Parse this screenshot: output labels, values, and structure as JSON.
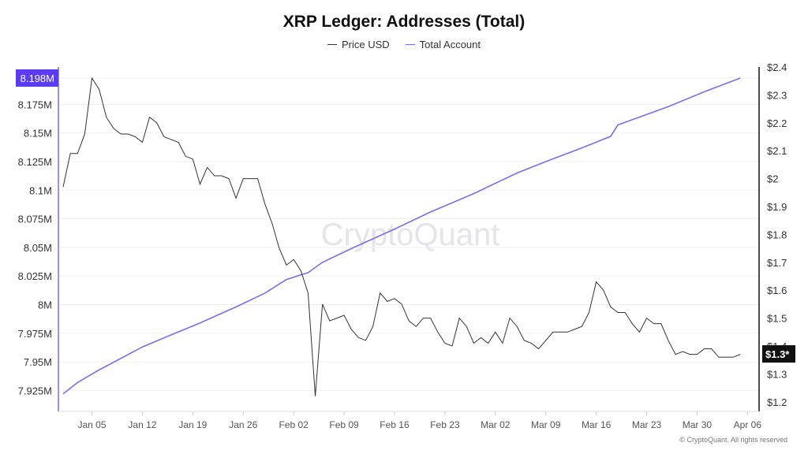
{
  "chart_data": {
    "type": "line",
    "title": "XRP Ledger: Addresses (Total)",
    "watermark": "CryptoQuant",
    "copyright": "© CryptoQuant. All rights reserved",
    "legend_placement": "top-center",
    "grid": true,
    "x_ticks": [
      "Jan 05",
      "Jan 12",
      "Jan 19",
      "Jan 26",
      "Feb 02",
      "Feb 09",
      "Feb 16",
      "Feb 23",
      "Mar 02",
      "Mar 09",
      "Mar 16",
      "Mar 23",
      "Mar 30",
      "Apr 06"
    ],
    "y_left": {
      "ticks": [
        "8.175M",
        "8.15M",
        "8.125M",
        "8.1M",
        "8.075M",
        "8.05M",
        "8.025M",
        "8M",
        "7.975M",
        "7.95M",
        "7.925M"
      ],
      "tick_values": [
        8.175,
        8.15,
        8.125,
        8.1,
        8.075,
        8.05,
        8.025,
        8.0,
        7.975,
        7.95,
        7.925
      ],
      "range": [
        7.915,
        8.208
      ],
      "current_label": "8.198M",
      "current_value": 8.198
    },
    "y_right": {
      "ticks": [
        "$2.4",
        "$2.3",
        "$2.2",
        "$2.1",
        "$2",
        "$1.9",
        "$1.8",
        "$1.7",
        "$1.6",
        "$1.5",
        "$1.4",
        "$1.3",
        "$1.2"
      ],
      "tick_values": [
        2.4,
        2.3,
        2.2,
        2.1,
        2.0,
        1.9,
        1.8,
        1.7,
        1.6,
        1.5,
        1.4,
        1.3,
        1.2
      ],
      "range": [
        1.16,
        2.4
      ],
      "current_label": "$1.3*",
      "current_value": 1.37
    },
    "dates": [
      "Jan 01",
      "Jan 02",
      "Jan 03",
      "Jan 04",
      "Jan 05",
      "Jan 06",
      "Jan 07",
      "Jan 08",
      "Jan 09",
      "Jan 10",
      "Jan 11",
      "Jan 12",
      "Jan 13",
      "Jan 14",
      "Jan 15",
      "Jan 16",
      "Jan 17",
      "Jan 18",
      "Jan 19",
      "Jan 20",
      "Jan 21",
      "Jan 22",
      "Jan 23",
      "Jan 24",
      "Jan 25",
      "Jan 26",
      "Jan 27",
      "Jan 28",
      "Jan 29",
      "Jan 30",
      "Jan 31",
      "Feb 01",
      "Feb 02",
      "Feb 03",
      "Feb 04",
      "Feb 05",
      "Feb 06",
      "Feb 07",
      "Feb 08",
      "Feb 09",
      "Feb 10",
      "Feb 11",
      "Feb 12",
      "Feb 13",
      "Feb 14",
      "Feb 15",
      "Feb 16",
      "Feb 17",
      "Feb 18",
      "Feb 19",
      "Feb 20",
      "Feb 21",
      "Feb 22",
      "Feb 23",
      "Feb 24",
      "Feb 25",
      "Feb 26",
      "Feb 27",
      "Feb 28",
      "Mar 01",
      "Mar 02",
      "Mar 03",
      "Mar 04",
      "Mar 05",
      "Mar 06",
      "Mar 07",
      "Mar 08",
      "Mar 09",
      "Mar 10",
      "Mar 11",
      "Mar 12",
      "Mar 13",
      "Mar 14",
      "Mar 15",
      "Mar 16",
      "Mar 17",
      "Mar 18",
      "Mar 19",
      "Mar 20",
      "Mar 21",
      "Mar 22",
      "Mar 23",
      "Mar 24",
      "Mar 25",
      "Mar 26",
      "Mar 27",
      "Mar 28",
      "Mar 29",
      "Mar 30",
      "Mar 31",
      "Apr 01",
      "Apr 02",
      "Apr 03",
      "Apr 04",
      "Apr 05"
    ],
    "series": [
      {
        "name": "Price USD",
        "axis": "right",
        "color": "#333333",
        "values": [
          1.97,
          2.09,
          2.09,
          2.16,
          2.36,
          2.32,
          2.22,
          2.18,
          2.16,
          2.16,
          2.15,
          2.13,
          2.22,
          2.2,
          2.15,
          2.14,
          2.13,
          2.08,
          2.07,
          1.98,
          2.04,
          2.01,
          2.01,
          2.0,
          1.93,
          2.0,
          2.0,
          2.0,
          1.91,
          1.84,
          1.75,
          1.69,
          1.71,
          1.67,
          1.59,
          1.22,
          1.55,
          1.49,
          1.5,
          1.51,
          1.46,
          1.43,
          1.42,
          1.47,
          1.59,
          1.56,
          1.57,
          1.55,
          1.49,
          1.47,
          1.5,
          1.5,
          1.45,
          1.41,
          1.4,
          1.5,
          1.47,
          1.41,
          1.43,
          1.41,
          1.45,
          1.41,
          1.5,
          1.47,
          1.42,
          1.41,
          1.39,
          1.42,
          1.45,
          1.45,
          1.45,
          1.46,
          1.47,
          1.52,
          1.63,
          1.6,
          1.54,
          1.52,
          1.52,
          1.48,
          1.45,
          1.5,
          1.48,
          1.48,
          1.42,
          1.37,
          1.38,
          1.37,
          1.37,
          1.39,
          1.39,
          1.36,
          1.36,
          1.36,
          1.37
        ]
      },
      {
        "name": "Total Account",
        "axis": "left",
        "color": "#7b6cf6",
        "points": [
          [
            "Jan 01",
            7.922
          ],
          [
            "Jan 03",
            7.932
          ],
          [
            "Jan 06",
            7.943
          ],
          [
            "Jan 09",
            7.953
          ],
          [
            "Jan 12",
            7.963
          ],
          [
            "Jan 15",
            7.971
          ],
          [
            "Jan 20",
            7.984
          ],
          [
            "Jan 25",
            7.998
          ],
          [
            "Jan 29",
            8.01
          ],
          [
            "Feb 01",
            8.022
          ],
          [
            "Feb 04",
            8.028
          ],
          [
            "Feb 06",
            8.037
          ],
          [
            "Feb 10",
            8.049
          ],
          [
            "Feb 16",
            8.066
          ],
          [
            "Feb 21",
            8.081
          ],
          [
            "Feb 27",
            8.097
          ],
          [
            "Mar 05",
            8.115
          ],
          [
            "Mar 09",
            8.125
          ],
          [
            "Mar 14",
            8.137
          ],
          [
            "Mar 18",
            8.147
          ],
          [
            "Mar 19",
            8.157
          ],
          [
            "Mar 26",
            8.173
          ],
          [
            "Mar 31",
            8.186
          ],
          [
            "Apr 05",
            8.198
          ]
        ]
      }
    ]
  }
}
